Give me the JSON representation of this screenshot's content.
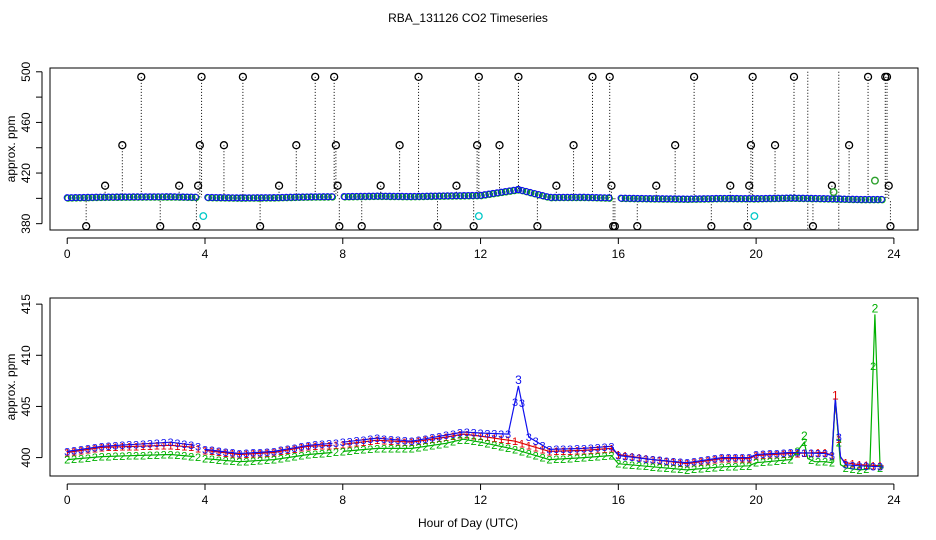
{
  "chart_data": [
    {
      "type": "scatter",
      "title": "RBA_131126  CO2 Timeseries",
      "ylabel": "approx. ppm",
      "xlim": [
        -0.5,
        24.7
      ],
      "ylim": [
        375,
        503
      ],
      "xticks": [
        0,
        4,
        8,
        12,
        16,
        20,
        24
      ],
      "yticks": [
        380,
        420,
        460,
        500
      ],
      "ytick_labels": [
        "380",
        "420",
        "460",
        "500"
      ],
      "series": [
        {
          "name": "black outliers",
          "color": "#000000",
          "x": [
            0.55,
            1.1,
            1.6,
            2.15,
            2.7,
            3.25,
            3.75,
            3.8,
            3.85,
            3.9,
            4.55,
            5.1,
            5.6,
            6.15,
            6.65,
            7.2,
            7.75,
            7.8,
            7.85,
            7.9,
            8.55,
            9.1,
            9.65,
            10.2,
            10.75,
            11.3,
            11.8,
            11.9,
            11.95,
            12.55,
            13.1,
            13.65,
            14.2,
            14.7,
            15.25,
            15.75,
            15.8,
            15.85,
            15.9,
            16.55,
            17.1,
            17.65,
            18.2,
            18.7,
            19.25,
            19.75,
            19.8,
            19.85,
            19.9,
            20.55,
            21.1,
            21.65,
            22.2,
            22.7,
            23.25,
            23.75,
            23.8,
            23.85,
            23.9
          ],
          "y": [
            378,
            410,
            442,
            496,
            378,
            410,
            378,
            410,
            442,
            496,
            442,
            496,
            378,
            410,
            442,
            496,
            496,
            442,
            410,
            378,
            378,
            410,
            442,
            496,
            378,
            410,
            378,
            442,
            496,
            442,
            496,
            378,
            410,
            442,
            496,
            496,
            410,
            378,
            378,
            378,
            410,
            442,
            496,
            378,
            410,
            378,
            410,
            442,
            496,
            442,
            496,
            378,
            410,
            442,
            496,
            496,
            496,
            410,
            378
          ]
        },
        {
          "name": "cyan",
          "color": "#00c8c8",
          "x": [
            3.95,
            11.95,
            19.95
          ],
          "y": [
            386,
            386,
            386
          ]
        },
        {
          "name": "olive/green",
          "color": "#2ca02c",
          "x": [
            22.25,
            23.45
          ],
          "y": [
            405,
            414
          ]
        },
        {
          "name": "blue baseline",
          "color": "#1010ee",
          "x": [
            0,
            1,
            2,
            3,
            4,
            5,
            6,
            7,
            8,
            9,
            10,
            11,
            12,
            13.1,
            14,
            15,
            16,
            17,
            18,
            19,
            20,
            21,
            22,
            23,
            23.7
          ],
          "y": [
            400.5,
            401,
            401.2,
            401.3,
            400.8,
            400.4,
            400.6,
            401.2,
            401.4,
            401.8,
            401.5,
            402,
            402.4,
            407,
            400.8,
            400.9,
            400.2,
            399.8,
            399.5,
            400,
            399.8,
            400.3,
            399.8,
            399.2,
            399.2
          ]
        }
      ]
    },
    {
      "type": "line",
      "ylabel": "approx. ppm",
      "xlabel": "Hour of Day (UTC)",
      "xlim": [
        -0.5,
        24.7
      ],
      "ylim": [
        398.2,
        415.6
      ],
      "xticks": [
        0,
        4,
        8,
        12,
        16,
        20,
        24
      ],
      "yticks": [
        400,
        405,
        410,
        415
      ],
      "ytick_labels": [
        "400",
        "405",
        "410",
        "415"
      ],
      "marker_labels": {
        "red": "1",
        "green": "2",
        "blue": "3"
      },
      "series": [
        {
          "name": "1",
          "color": "#e00000",
          "x": [
            0,
            1,
            2,
            3,
            3.7,
            4,
            5,
            6,
            7,
            7.7,
            8,
            9,
            10,
            11,
            11.5,
            12,
            13,
            14,
            15,
            15.8,
            16,
            17,
            18,
            19,
            19.8,
            20,
            21,
            22,
            22.2,
            22.3,
            22.45,
            22.6,
            23,
            23.7
          ],
          "y": [
            400.5,
            401,
            401.1,
            401.2,
            401,
            400.7,
            400.3,
            400.5,
            401.1,
            401.2,
            401.3,
            401.7,
            401.5,
            402,
            402.3,
            402.1,
            401.6,
            400.6,
            400.7,
            400.9,
            400.3,
            399.8,
            399.4,
            399.9,
            399.9,
            400.2,
            400.4,
            400.5,
            400.2,
            405.5,
            400,
            399.5,
            399.3,
            399.2
          ]
        },
        {
          "name": "2",
          "color": "#00b000",
          "x": [
            0,
            1,
            2,
            3,
            3.7,
            4,
            5,
            6,
            7,
            7.7,
            8,
            9,
            10,
            11,
            11.5,
            12,
            13,
            14,
            15,
            15.8,
            16,
            17,
            18,
            19,
            19.8,
            20,
            21,
            21.4,
            21.5,
            21.7,
            22,
            22.2,
            22.3,
            22.45,
            22.6,
            23,
            23.3,
            23.45,
            23.6,
            23.7
          ],
          "y": [
            399.8,
            400.1,
            400.2,
            400.3,
            400.1,
            399.9,
            399.6,
            399.8,
            400.3,
            400.5,
            400.6,
            400.9,
            400.9,
            401.4,
            401.8,
            401.5,
            400.8,
            399.8,
            400,
            400.2,
            399.4,
            399.1,
            398.8,
            399.1,
            399.2,
            399.5,
            399.8,
            401.5,
            399.9,
            399.6,
            399.6,
            399.5,
            405.8,
            399.3,
            399,
            398.8,
            398.9,
            414,
            399,
            399
          ]
        },
        {
          "name": "3",
          "color": "#1010ee",
          "x": [
            0,
            1,
            2,
            3,
            3.7,
            4,
            5,
            6,
            7,
            7.7,
            8,
            9,
            10,
            11,
            11.5,
            12,
            12.8,
            13.1,
            13.4,
            14,
            15,
            15.8,
            16,
            17,
            18,
            19,
            19.8,
            20,
            21,
            22,
            22.2,
            22.3,
            22.45,
            22.6,
            23,
            23.7
          ],
          "y": [
            400.6,
            401.1,
            401.3,
            401.5,
            401.2,
            400.8,
            400.4,
            400.6,
            401.2,
            401.4,
            401.5,
            401.9,
            401.6,
            402.2,
            402.5,
            402.4,
            402.3,
            407,
            402,
            400.8,
            400.9,
            401.1,
            400.2,
            399.8,
            399.5,
            400,
            400,
            400.3,
            400.5,
            400.4,
            400.2,
            405.8,
            400.1,
            399.3,
            399.2,
            399.1
          ]
        }
      ]
    }
  ]
}
